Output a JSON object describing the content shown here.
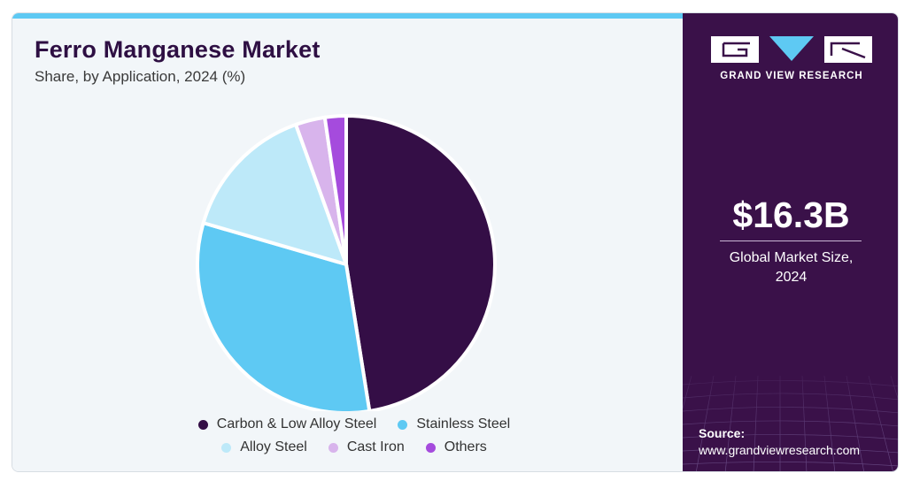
{
  "header": {
    "title": "Ferro Manganese Market",
    "subtitle": "Share, by Application, 2024 (%)"
  },
  "chart_data": {
    "type": "pie",
    "title": "Ferro Manganese Market",
    "subtitle": "Share, by Application, 2024 (%)",
    "legend_position": "bottom",
    "start_angle_deg": 0,
    "direction": "clockwise",
    "slices": [
      {
        "label": "Carbon & Low Alloy Steel",
        "value": 47.5,
        "color": "#340e46"
      },
      {
        "label": "Stainless Steel",
        "value": 32.0,
        "color": "#5ec9f3"
      },
      {
        "label": "Alloy Steel",
        "value": 15.0,
        "color": "#bde9f9"
      },
      {
        "label": "Cast Iron",
        "value": 3.2,
        "color": "#d8b4ec"
      },
      {
        "label": "Others",
        "value": 2.3,
        "color": "#a54bdd"
      }
    ]
  },
  "legend": {
    "row1": [
      {
        "label": "Carbon & Low Alloy Steel",
        "color": "#340e46"
      },
      {
        "label": "Stainless Steel",
        "color": "#5ec9f3"
      }
    ],
    "row2": [
      {
        "label": "Alloy Steel",
        "color": "#bde9f9"
      },
      {
        "label": "Cast Iron",
        "color": "#d8b4ec"
      },
      {
        "label": "Others",
        "color": "#a54bdd"
      }
    ]
  },
  "sidebar": {
    "logo_text": "GRAND VIEW RESEARCH",
    "market_value": "$16.3B",
    "market_label_line1": "Global Market Size,",
    "market_label_line2": "2024",
    "source_label": "Source:",
    "source_url": "www.grandviewresearch.com"
  },
  "colors": {
    "sidebar_bg": "#3a1149",
    "panel_bg": "#f2f6f9",
    "accent": "#5ec9f3",
    "title": "#2e0f43"
  }
}
